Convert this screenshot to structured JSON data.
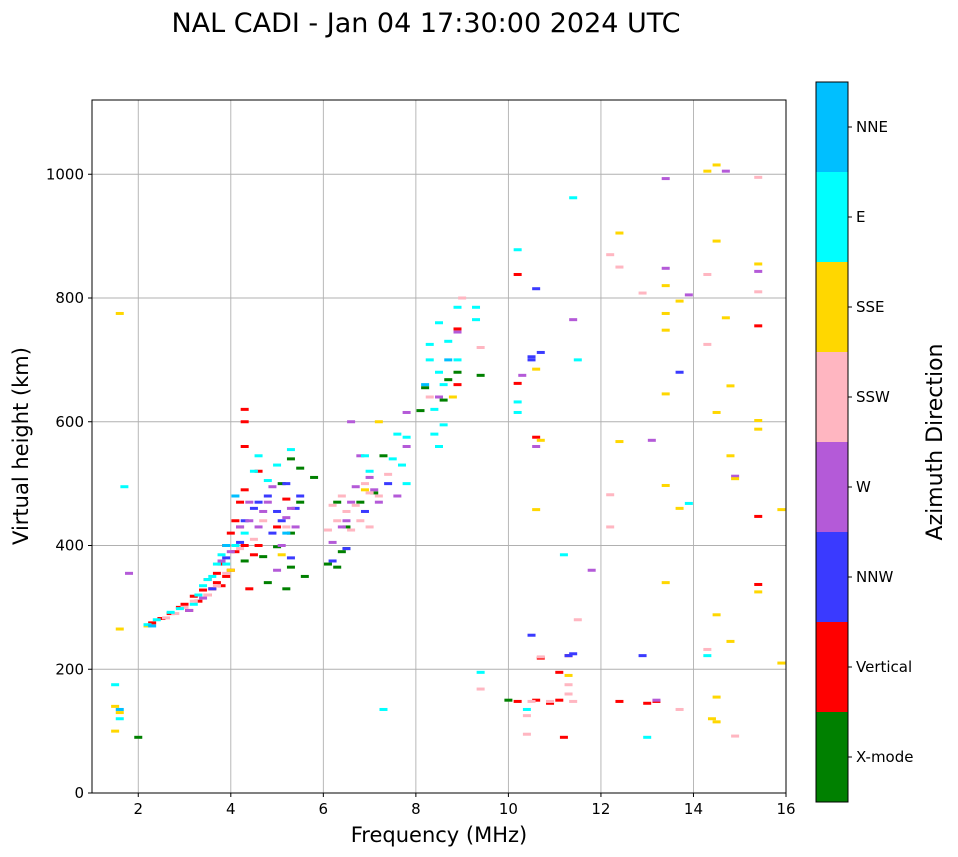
{
  "chart_data": {
    "type": "scatter",
    "title": "NAL CADI - Jan 04 17:30:00 2024 UTC",
    "xlabel": "Frequency (MHz)",
    "ylabel": "Virtual height (km)",
    "xlim": [
      1.0,
      16.0
    ],
    "ylim": [
      0,
      1120
    ],
    "xticks": [
      2,
      4,
      6,
      8,
      10,
      12,
      14,
      16
    ],
    "yticks": [
      0,
      200,
      400,
      600,
      800,
      1000
    ],
    "grid": true,
    "colorbar": {
      "title": "Azimuth Direction",
      "categories": [
        "X-mode",
        "Vertical",
        "NNW",
        "W",
        "SSW",
        "SSE",
        "E",
        "NNE"
      ],
      "colors": [
        "#008000",
        "#ff0000",
        "#3a3aff",
        "#b45ad8",
        "#ffb6c1",
        "#ffd700",
        "#00ffff",
        "#00bfff"
      ]
    },
    "series": [
      {
        "name": "X-mode",
        "points": [
          [
            2.0,
            90
          ],
          [
            4.3,
            375
          ],
          [
            4.7,
            382
          ],
          [
            4.8,
            340
          ],
          [
            5.0,
            398
          ],
          [
            5.2,
            330
          ],
          [
            5.3,
            365
          ],
          [
            5.3,
            420
          ],
          [
            5.5,
            470
          ],
          [
            5.6,
            350
          ],
          [
            5.5,
            525
          ],
          [
            5.1,
            500
          ],
          [
            5.3,
            540
          ],
          [
            5.8,
            510
          ],
          [
            6.1,
            370
          ],
          [
            6.3,
            365
          ],
          [
            6.4,
            390
          ],
          [
            6.5,
            395
          ],
          [
            6.3,
            470
          ],
          [
            6.5,
            430
          ],
          [
            6.8,
            470
          ],
          [
            7.1,
            485
          ],
          [
            7.3,
            545
          ],
          [
            8.1,
            618
          ],
          [
            8.2,
            655
          ],
          [
            8.6,
            635
          ],
          [
            8.7,
            668
          ],
          [
            8.9,
            680
          ],
          [
            9.4,
            675
          ],
          [
            10.0,
            150
          ]
        ]
      },
      {
        "name": "Vertical",
        "points": [
          [
            2.3,
            275
          ],
          [
            2.5,
            282
          ],
          [
            2.7,
            290
          ],
          [
            2.9,
            300
          ],
          [
            3.0,
            305
          ],
          [
            3.1,
            295
          ],
          [
            3.2,
            318
          ],
          [
            3.3,
            310
          ],
          [
            3.4,
            328
          ],
          [
            3.5,
            320
          ],
          [
            3.5,
            345
          ],
          [
            3.6,
            330
          ],
          [
            3.7,
            340
          ],
          [
            3.7,
            355
          ],
          [
            3.8,
            335
          ],
          [
            3.8,
            370
          ],
          [
            3.9,
            350
          ],
          [
            3.9,
            400
          ],
          [
            4.0,
            360
          ],
          [
            4.0,
            420
          ],
          [
            4.1,
            390
          ],
          [
            4.1,
            440
          ],
          [
            4.2,
            430
          ],
          [
            4.2,
            470
          ],
          [
            4.3,
            400
          ],
          [
            4.3,
            490
          ],
          [
            4.3,
            560
          ],
          [
            4.3,
            600
          ],
          [
            4.3,
            620
          ],
          [
            4.4,
            330
          ],
          [
            4.5,
            385
          ],
          [
            4.6,
            400
          ],
          [
            4.6,
            520
          ],
          [
            5.0,
            430
          ],
          [
            5.2,
            475
          ],
          [
            8.9,
            750
          ],
          [
            8.9,
            660
          ],
          [
            10.2,
            662
          ],
          [
            10.2,
            838
          ],
          [
            10.6,
            575
          ],
          [
            10.6,
            150
          ],
          [
            10.7,
            218
          ],
          [
            10.9,
            145
          ],
          [
            11.2,
            90
          ],
          [
            11.3,
            222
          ],
          [
            11.1,
            150
          ],
          [
            12.4,
            148
          ],
          [
            13.0,
            145
          ],
          [
            13.2,
            148
          ],
          [
            15.4,
            755
          ],
          [
            15.4,
            447
          ],
          [
            15.4,
            337
          ],
          [
            10.2,
            148
          ],
          [
            11.1,
            195
          ]
        ]
      },
      {
        "name": "NNW",
        "points": [
          [
            3.6,
            330
          ],
          [
            3.9,
            380
          ],
          [
            4.2,
            405
          ],
          [
            4.3,
            440
          ],
          [
            4.5,
            460
          ],
          [
            4.6,
            470
          ],
          [
            4.8,
            480
          ],
          [
            4.9,
            420
          ],
          [
            5.0,
            455
          ],
          [
            5.1,
            440
          ],
          [
            5.2,
            500
          ],
          [
            5.4,
            460
          ],
          [
            5.3,
            380
          ],
          [
            5.5,
            480
          ],
          [
            6.2,
            375
          ],
          [
            6.5,
            395
          ],
          [
            6.9,
            455
          ],
          [
            7.4,
            500
          ],
          [
            10.5,
            255
          ],
          [
            10.5,
            705
          ],
          [
            10.7,
            712
          ],
          [
            10.6,
            815
          ],
          [
            11.3,
            222
          ],
          [
            12.9,
            222
          ],
          [
            13.7,
            680
          ],
          [
            11.4,
            225
          ],
          [
            10.5,
            700
          ]
        ]
      },
      {
        "name": "W",
        "points": [
          [
            1.8,
            355
          ],
          [
            3.1,
            295
          ],
          [
            3.4,
            315
          ],
          [
            3.8,
            375
          ],
          [
            4.0,
            390
          ],
          [
            4.2,
            430
          ],
          [
            4.4,
            440
          ],
          [
            4.4,
            470
          ],
          [
            4.6,
            430
          ],
          [
            4.7,
            455
          ],
          [
            4.8,
            470
          ],
          [
            4.9,
            495
          ],
          [
            5.0,
            360
          ],
          [
            5.1,
            400
          ],
          [
            5.2,
            445
          ],
          [
            5.3,
            460
          ],
          [
            5.4,
            430
          ],
          [
            6.2,
            405
          ],
          [
            6.4,
            430
          ],
          [
            6.5,
            440
          ],
          [
            6.6,
            470
          ],
          [
            6.7,
            495
          ],
          [
            6.6,
            600
          ],
          [
            6.8,
            545
          ],
          [
            7.0,
            510
          ],
          [
            7.1,
            490
          ],
          [
            7.2,
            470
          ],
          [
            7.6,
            480
          ],
          [
            7.8,
            560
          ],
          [
            7.8,
            615
          ],
          [
            8.5,
            640
          ],
          [
            8.9,
            745
          ],
          [
            10.3,
            675
          ],
          [
            10.6,
            560
          ],
          [
            11.4,
            765
          ],
          [
            11.8,
            360
          ],
          [
            13.1,
            570
          ],
          [
            13.2,
            150
          ],
          [
            13.4,
            993
          ],
          [
            14.9,
            512
          ],
          [
            14.7,
            1005
          ],
          [
            15.4,
            843
          ],
          [
            13.4,
            848
          ],
          [
            13.9,
            805
          ]
        ]
      },
      {
        "name": "SSW",
        "points": [
          [
            2.6,
            283
          ],
          [
            2.8,
            290
          ],
          [
            3.0,
            300
          ],
          [
            3.2,
            310
          ],
          [
            3.5,
            320
          ],
          [
            3.7,
            335
          ],
          [
            3.9,
            355
          ],
          [
            4.2,
            395
          ],
          [
            4.5,
            410
          ],
          [
            4.7,
            440
          ],
          [
            5.2,
            430
          ],
          [
            6.1,
            425
          ],
          [
            6.2,
            465
          ],
          [
            6.3,
            440
          ],
          [
            6.4,
            480
          ],
          [
            6.5,
            455
          ],
          [
            6.6,
            425
          ],
          [
            6.7,
            465
          ],
          [
            6.8,
            440
          ],
          [
            6.9,
            500
          ],
          [
            7.0,
            485
          ],
          [
            7.0,
            430
          ],
          [
            7.2,
            480
          ],
          [
            7.4,
            515
          ],
          [
            8.3,
            640
          ],
          [
            9.0,
            800
          ],
          [
            9.4,
            720
          ],
          [
            10.4,
            95
          ],
          [
            10.4,
            125
          ],
          [
            10.9,
            148
          ],
          [
            10.7,
            220
          ],
          [
            11.3,
            160
          ],
          [
            11.3,
            175
          ],
          [
            11.4,
            148
          ],
          [
            11.5,
            280
          ],
          [
            12.2,
            482
          ],
          [
            12.2,
            430
          ],
          [
            12.2,
            870
          ],
          [
            12.4,
            850
          ],
          [
            12.9,
            808
          ],
          [
            13.7,
            135
          ],
          [
            14.3,
            838
          ],
          [
            14.3,
            725
          ],
          [
            14.3,
            232
          ],
          [
            14.9,
            92
          ],
          [
            15.4,
            995
          ],
          [
            15.4,
            810
          ],
          [
            9.4,
            168
          ],
          [
            10.5,
            148
          ]
        ]
      },
      {
        "name": "SSE",
        "points": [
          [
            1.5,
            100
          ],
          [
            1.5,
            140
          ],
          [
            1.6,
            130
          ],
          [
            1.6,
            775
          ],
          [
            1.6,
            265
          ],
          [
            2.2,
            270
          ],
          [
            4.0,
            360
          ],
          [
            5.1,
            385
          ],
          [
            6.9,
            490
          ],
          [
            7.2,
            600
          ],
          [
            8.8,
            640
          ],
          [
            10.6,
            458
          ],
          [
            10.6,
            685
          ],
          [
            10.7,
            570
          ],
          [
            11.3,
            190
          ],
          [
            12.4,
            568
          ],
          [
            12.4,
            905
          ],
          [
            13.4,
            820
          ],
          [
            13.4,
            775
          ],
          [
            13.4,
            748
          ],
          [
            13.4,
            645
          ],
          [
            13.4,
            497
          ],
          [
            13.4,
            340
          ],
          [
            13.7,
            795
          ],
          [
            13.7,
            460
          ],
          [
            14.5,
            1015
          ],
          [
            14.5,
            892
          ],
          [
            14.5,
            615
          ],
          [
            14.5,
            288
          ],
          [
            14.5,
            155
          ],
          [
            14.5,
            115
          ],
          [
            14.7,
            768
          ],
          [
            14.8,
            658
          ],
          [
            14.8,
            545
          ],
          [
            14.9,
            508
          ],
          [
            14.8,
            245
          ],
          [
            14.3,
            1005
          ],
          [
            14.4,
            120
          ],
          [
            15.4,
            855
          ],
          [
            15.4,
            602
          ],
          [
            15.4,
            588
          ],
          [
            15.4,
            325
          ],
          [
            15.9,
            458
          ],
          [
            15.9,
            210
          ]
        ]
      },
      {
        "name": "E",
        "points": [
          [
            1.5,
            175
          ],
          [
            1.6,
            120
          ],
          [
            1.7,
            495
          ],
          [
            2.2,
            272
          ],
          [
            2.4,
            280
          ],
          [
            2.7,
            292
          ],
          [
            2.9,
            298
          ],
          [
            3.2,
            305
          ],
          [
            3.3,
            320
          ],
          [
            3.4,
            335
          ],
          [
            3.5,
            345
          ],
          [
            3.6,
            350
          ],
          [
            3.7,
            370
          ],
          [
            3.8,
            385
          ],
          [
            3.9,
            370
          ],
          [
            4.1,
            400
          ],
          [
            4.3,
            420
          ],
          [
            4.5,
            520
          ],
          [
            4.6,
            545
          ],
          [
            4.8,
            505
          ],
          [
            5.0,
            530
          ],
          [
            5.3,
            555
          ],
          [
            6.9,
            545
          ],
          [
            7.0,
            520
          ],
          [
            7.3,
            135
          ],
          [
            7.5,
            540
          ],
          [
            7.6,
            580
          ],
          [
            7.7,
            530
          ],
          [
            7.8,
            575
          ],
          [
            7.8,
            500
          ],
          [
            8.3,
            700
          ],
          [
            8.3,
            725
          ],
          [
            8.4,
            620
          ],
          [
            8.4,
            580
          ],
          [
            8.5,
            760
          ],
          [
            8.5,
            680
          ],
          [
            8.5,
            560
          ],
          [
            8.6,
            660
          ],
          [
            8.6,
            595
          ],
          [
            8.7,
            730
          ],
          [
            8.9,
            700
          ],
          [
            8.9,
            785
          ],
          [
            9.3,
            785
          ],
          [
            9.3,
            765
          ],
          [
            9.4,
            195
          ],
          [
            10.2,
            878
          ],
          [
            10.2,
            632
          ],
          [
            10.2,
            615
          ],
          [
            10.4,
            135
          ],
          [
            11.2,
            385
          ],
          [
            11.4,
            962
          ],
          [
            11.5,
            700
          ],
          [
            13.0,
            90
          ],
          [
            13.9,
            468
          ],
          [
            14.3,
            222
          ]
        ]
      },
      {
        "name": "NNE",
        "points": [
          [
            1.6,
            135
          ],
          [
            2.3,
            270
          ],
          [
            3.9,
            400
          ],
          [
            4.1,
            480
          ],
          [
            5.2,
            420
          ],
          [
            8.2,
            660
          ],
          [
            8.7,
            700
          ]
        ]
      }
    ]
  }
}
